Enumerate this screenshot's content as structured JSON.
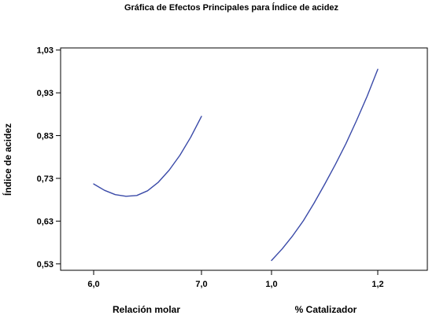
{
  "chart_data": {
    "type": "line",
    "title": "Gráfica de Efectos Principales para Índice de acidez",
    "ylabel": "Índice de acidez",
    "ylim": [
      0.515,
      1.035
    ],
    "y_ticks": [
      "1,03",
      "0,93",
      "0,83",
      "0,73",
      "0,63",
      "0,53"
    ],
    "y_tick_values": [
      1.03,
      0.93,
      0.83,
      0.73,
      0.63,
      0.53
    ],
    "grid": false,
    "line_color": "#3a4aa8",
    "factors": [
      {
        "name": "Relación molar",
        "tick_labels": [
          "6,0",
          "7,0"
        ],
        "x_range": [
          6.0,
          7.0
        ],
        "x": [
          6.0,
          6.1,
          6.2,
          6.3,
          6.4,
          6.5,
          6.6,
          6.7,
          6.8,
          6.9,
          7.0
        ],
        "y": [
          0.717,
          0.702,
          0.692,
          0.688,
          0.69,
          0.701,
          0.721,
          0.749,
          0.784,
          0.826,
          0.875
        ]
      },
      {
        "name": "% Catalizador",
        "tick_labels": [
          "1,0",
          "1,2"
        ],
        "x_range": [
          1.0,
          1.2
        ],
        "x": [
          1.0,
          1.02,
          1.04,
          1.06,
          1.08,
          1.1,
          1.12,
          1.14,
          1.16,
          1.18,
          1.2
        ],
        "y": [
          0.538,
          0.565,
          0.596,
          0.631,
          0.672,
          0.716,
          0.762,
          0.811,
          0.865,
          0.922,
          0.985
        ]
      }
    ]
  }
}
